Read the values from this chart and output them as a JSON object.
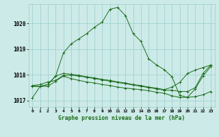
{
  "background_color": "#cceae7",
  "grid_color": "#99cccc",
  "line_color": "#1a6b1a",
  "title": "Graphe pression niveau de la mer (hPa)",
  "xlabel_ticks": [
    0,
    1,
    2,
    3,
    4,
    5,
    6,
    7,
    8,
    9,
    10,
    11,
    12,
    13,
    14,
    15,
    16,
    17,
    18,
    19,
    20,
    21,
    22,
    23
  ],
  "ylim": [
    1016.75,
    1020.75
  ],
  "yticks": [
    1017,
    1018,
    1019,
    1020
  ],
  "series": [
    [
      1017.1,
      1017.55,
      1017.55,
      1017.75,
      1017.95,
      1017.85,
      1017.78,
      1017.72,
      1017.68,
      1017.62,
      1017.58,
      1017.52,
      1017.48,
      1017.45,
      1017.42,
      1017.38,
      1017.32,
      1017.28,
      1017.18,
      1017.12,
      1017.12,
      1017.15,
      1017.22,
      1017.35
    ],
    [
      1017.55,
      1017.55,
      1017.62,
      1017.95,
      1018.85,
      1019.2,
      1019.4,
      1019.6,
      1019.85,
      1020.05,
      1020.55,
      1020.62,
      1020.3,
      1019.6,
      1019.3,
      1018.62,
      1018.38,
      1018.2,
      1017.92,
      1017.2,
      1017.12,
      1017.45,
      1017.95,
      1018.32
    ],
    [
      1017.55,
      1017.55,
      1017.62,
      1017.95,
      1018.05,
      1018.02,
      1017.98,
      1017.92,
      1017.88,
      1017.82,
      1017.78,
      1017.72,
      1017.68,
      1017.62,
      1017.58,
      1017.52,
      1017.48,
      1017.42,
      1017.52,
      1017.7,
      1018.05,
      1018.18,
      1018.28,
      1018.38
    ],
    [
      1017.58,
      1017.62,
      1017.72,
      1017.78,
      1017.98,
      1017.98,
      1017.95,
      1017.9,
      1017.85,
      1017.8,
      1017.75,
      1017.7,
      1017.65,
      1017.6,
      1017.55,
      1017.5,
      1017.45,
      1017.4,
      1017.4,
      1017.35,
      1017.35,
      1017.5,
      1018.05,
      1018.38
    ]
  ]
}
